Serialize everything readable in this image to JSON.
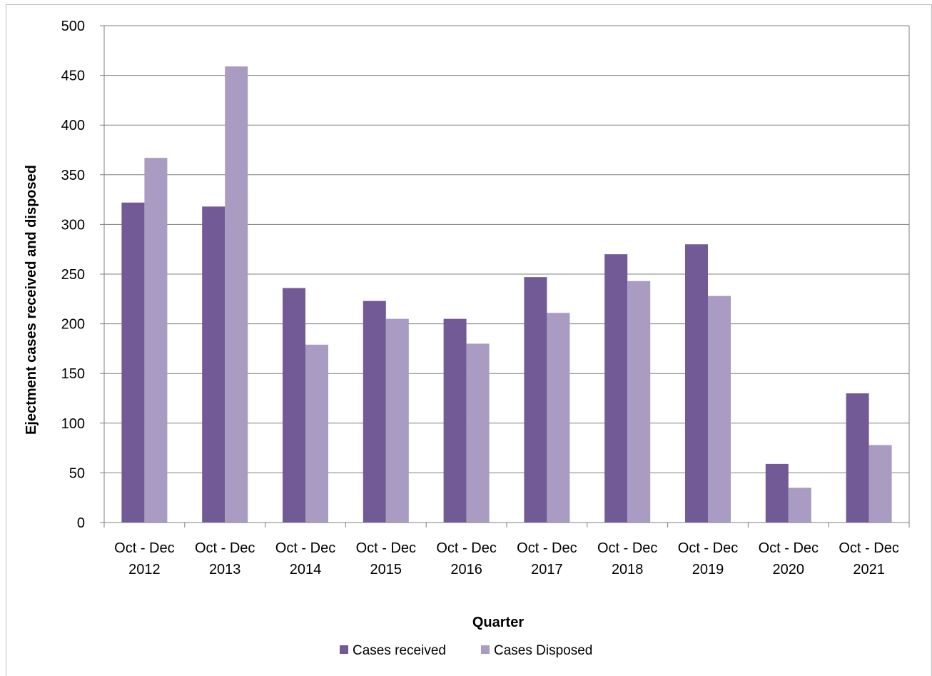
{
  "chart_data": {
    "type": "bar",
    "categories": [
      [
        "Oct - Dec",
        "2012"
      ],
      [
        "Oct - Dec",
        "2013"
      ],
      [
        "Oct - Dec",
        "2014"
      ],
      [
        "Oct - Dec",
        "2015"
      ],
      [
        "Oct - Dec",
        "2016"
      ],
      [
        "Oct - Dec",
        "2017"
      ],
      [
        "Oct - Dec",
        "2018"
      ],
      [
        "Oct - Dec",
        "2019"
      ],
      [
        "Oct - Dec",
        "2020"
      ],
      [
        "Oct - Dec",
        "2021"
      ]
    ],
    "series": [
      {
        "name": "Cases received",
        "color": "#725a96",
        "values": [
          322,
          318,
          236,
          223,
          205,
          247,
          270,
          280,
          59,
          130
        ]
      },
      {
        "name": "Cases Disposed",
        "color": "#a99bc2",
        "values": [
          367,
          459,
          179,
          205,
          180,
          211,
          243,
          228,
          35,
          78
        ]
      }
    ],
    "xlabel": "Quarter",
    "ylabel": "Ejectment cases received and disposed",
    "ylim": [
      0,
      500
    ],
    "yticks": [
      0,
      50,
      100,
      150,
      200,
      250,
      300,
      350,
      400,
      450,
      500
    ],
    "grid": true,
    "legend_position": "bottom",
    "gridline_color": "#808080"
  }
}
